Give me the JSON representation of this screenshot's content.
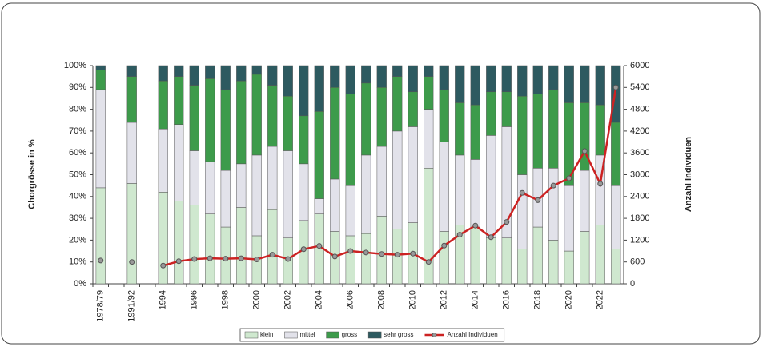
{
  "chart_data": {
    "type": "bar",
    "stacked": true,
    "categories": [
      "1978/79",
      null,
      "1991/92",
      null,
      "1994",
      null,
      "1996",
      null,
      "1998",
      null,
      "2000",
      null,
      "2002",
      null,
      "2004",
      null,
      "2006",
      null,
      "2008",
      null,
      "2010",
      null,
      "2012",
      null,
      "2014",
      null,
      "2016",
      null,
      "2018",
      null,
      "2020",
      null,
      "2022",
      null
    ],
    "ylabel": "Chorgrösse in %",
    "y2label": "Anzahl Individuen",
    "ylim": [
      0,
      100
    ],
    "yticks": [
      {
        "value": 0,
        "label": "0%"
      },
      {
        "value": 10,
        "label": "10%"
      },
      {
        "value": 20,
        "label": "20%"
      },
      {
        "value": 30,
        "label": "30%"
      },
      {
        "value": 40,
        "label": "40%"
      },
      {
        "value": 50,
        "label": "50%"
      },
      {
        "value": 60,
        "label": "60%"
      },
      {
        "value": 70,
        "label": "70%"
      },
      {
        "value": 80,
        "label": "80%"
      },
      {
        "value": 90,
        "label": "90%"
      },
      {
        "value": 100,
        "label": "100%"
      }
    ],
    "y2lim": [
      0,
      6000
    ],
    "y2ticks": [
      0,
      600,
      1200,
      1800,
      2400,
      3000,
      3600,
      4200,
      4800,
      5400,
      6000
    ],
    "legend": "bottom",
    "series": [
      {
        "name": "klein",
        "color": "#cfe8cf",
        "values": [
          44,
          null,
          46,
          null,
          42,
          38,
          36,
          32,
          26,
          35,
          22,
          34,
          21,
          29,
          32,
          24,
          22,
          23,
          31,
          25,
          28,
          53,
          24,
          27,
          26,
          21,
          21,
          16,
          26,
          20,
          15,
          24,
          27,
          16
        ]
      },
      {
        "name": "mittel",
        "color": "#e2e2ea",
        "values": [
          45,
          null,
          28,
          null,
          29,
          35,
          25,
          24,
          26,
          20,
          37,
          29,
          40,
          26,
          7,
          24,
          23,
          36,
          32,
          45,
          44,
          27,
          41,
          32,
          31,
          47,
          51,
          34,
          27,
          33,
          30,
          28,
          32,
          29
        ]
      },
      {
        "name": "gross",
        "color": "#3d9b4b",
        "values": [
          9,
          null,
          21,
          null,
          22,
          22,
          30,
          38,
          37,
          38,
          37,
          28,
          25,
          22,
          40,
          42,
          42,
          33,
          27,
          25,
          16,
          15,
          24,
          24,
          25,
          20,
          16,
          36,
          34,
          36,
          38,
          31,
          23,
          29
        ]
      },
      {
        "name": "sehr gross",
        "color": "#2d5a60",
        "values": [
          2,
          null,
          5,
          null,
          7,
          5,
          9,
          6,
          11,
          7,
          4,
          9,
          14,
          23,
          21,
          10,
          13,
          8,
          10,
          5,
          12,
          5,
          11,
          17,
          18,
          12,
          12,
          14,
          13,
          11,
          17,
          17,
          18,
          26
        ]
      },
      {
        "name": "Anzahl Individuen",
        "type": "line",
        "axis": "y2",
        "color": "#cc2222",
        "values": [
          640,
          null,
          600,
          null,
          500,
          620,
          680,
          700,
          690,
          700,
          670,
          800,
          680,
          950,
          1040,
          750,
          900,
          860,
          820,
          800,
          830,
          600,
          1050,
          1350,
          1600,
          1280,
          1700,
          2500,
          2300,
          2700,
          2900,
          3650,
          2750,
          5400
        ]
      }
    ]
  }
}
